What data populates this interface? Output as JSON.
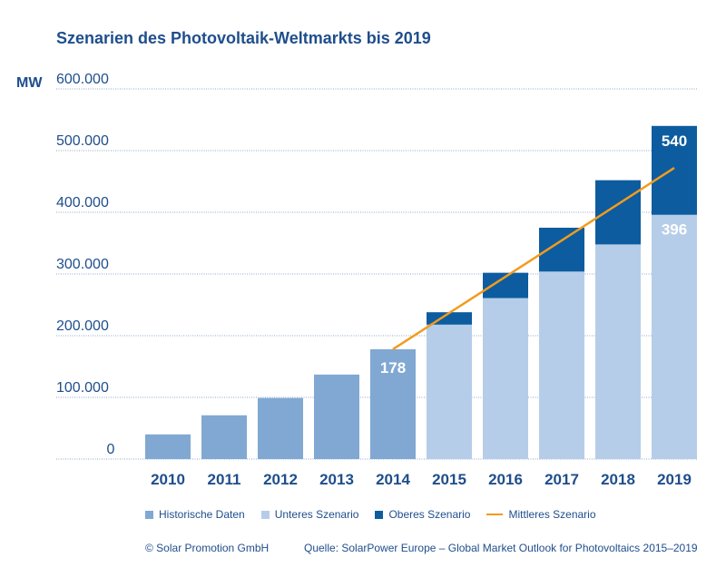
{
  "chart_data": {
    "type": "bar",
    "title": "Szenarien des Photovoltaik-Weltmarkts bis 2019",
    "ylabel": "MW",
    "ylim": [
      0,
      600000
    ],
    "yticks": [
      "0",
      "100.000",
      "200.000",
      "300.000",
      "400.000",
      "500.000",
      "600.000"
    ],
    "categories": [
      "2010",
      "2011",
      "2012",
      "2013",
      "2014",
      "2015",
      "2016",
      "2017",
      "2018",
      "2019"
    ],
    "series": [
      {
        "name": "Historische Daten",
        "values": [
          40000,
          71000,
          99000,
          137000,
          178000,
          null,
          null,
          null,
          null,
          null
        ]
      },
      {
        "name": "Unteres Szenario",
        "values": [
          null,
          null,
          null,
          null,
          null,
          218000,
          261000,
          304000,
          348000,
          396000
        ]
      },
      {
        "name": "Oberes Szenario",
        "values": [
          null,
          null,
          null,
          null,
          null,
          238000,
          302000,
          375000,
          452000,
          540000
        ]
      },
      {
        "name": "Mittleres Szenario",
        "type": "line",
        "x": [
          "2014",
          "2019"
        ],
        "values": [
          178000,
          472000
        ]
      }
    ],
    "data_labels": [
      {
        "category": "2014",
        "text": "178"
      },
      {
        "category": "2019",
        "text": "396"
      },
      {
        "category": "2019",
        "text": "540"
      }
    ],
    "colors": {
      "historical": "#80a8d2",
      "lower": "#b5cde9",
      "upper": "#0d5c9f",
      "middle": "#f29b1d",
      "text": "#1f4e8c",
      "grid": "#8aa8c8"
    },
    "grid": true,
    "legend_position": "bottom"
  },
  "footer": {
    "copyright": "© Solar Promotion GmbH",
    "source": "Quelle: SolarPower Europe – Global Market Outlook for Photovoltaics 2015–2019"
  }
}
